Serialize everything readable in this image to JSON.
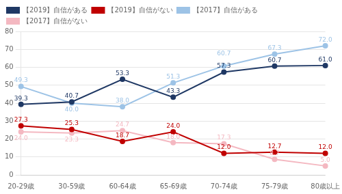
{
  "chart_data": {
    "type": "line",
    "categories": [
      "20-29歳",
      "30-59歳",
      "60-64歳",
      "65-69歳",
      "70-74歳",
      "75-79歳",
      "80歳以上"
    ],
    "series": [
      {
        "name": "【2019】自信がある",
        "color": "#1f3864",
        "marker": "circle",
        "values": [
          39.3,
          40.7,
          53.3,
          43.3,
          57.3,
          60.7,
          61.0
        ],
        "value_labels": [
          "39.3",
          "40.7",
          "53.3",
          "43.3",
          "57.3",
          "60.7",
          "61.0"
        ]
      },
      {
        "name": "【2019】自信がない",
        "color": "#c00000",
        "marker": "circle",
        "values": [
          27.3,
          25.3,
          18.7,
          24.0,
          12.0,
          12.7,
          12.0
        ],
        "value_labels": [
          "27.3",
          "25.3",
          "18.7",
          "24.0",
          "12.0",
          "12.7",
          "12.0"
        ]
      },
      {
        "name": "【2017】自信がある",
        "color": "#9dc3e6",
        "marker": "circle",
        "values": [
          49.3,
          40.0,
          38.0,
          51.3,
          60.7,
          67.3,
          72.0
        ],
        "value_labels": [
          "49.3",
          "40.0",
          "38.0",
          "51.3",
          "60.7",
          "67.3",
          "72.0"
        ]
      },
      {
        "name": "【2017】自信がない",
        "color": "#f4b8c1",
        "marker": "circle",
        "values": [
          24.0,
          23.3,
          24.7,
          18.0,
          17.3,
          8.7,
          5.0
        ],
        "value_labels": [
          "24.0",
          "23.3",
          "24.7",
          "18.0",
          "17.3",
          "8.7",
          "5.0"
        ]
      }
    ],
    "ylim": [
      0,
      80
    ],
    "yticks": [
      0,
      10,
      20,
      30,
      40,
      50,
      60,
      70,
      80
    ],
    "grid": true,
    "legend": "upper left",
    "data_labels": true
  }
}
